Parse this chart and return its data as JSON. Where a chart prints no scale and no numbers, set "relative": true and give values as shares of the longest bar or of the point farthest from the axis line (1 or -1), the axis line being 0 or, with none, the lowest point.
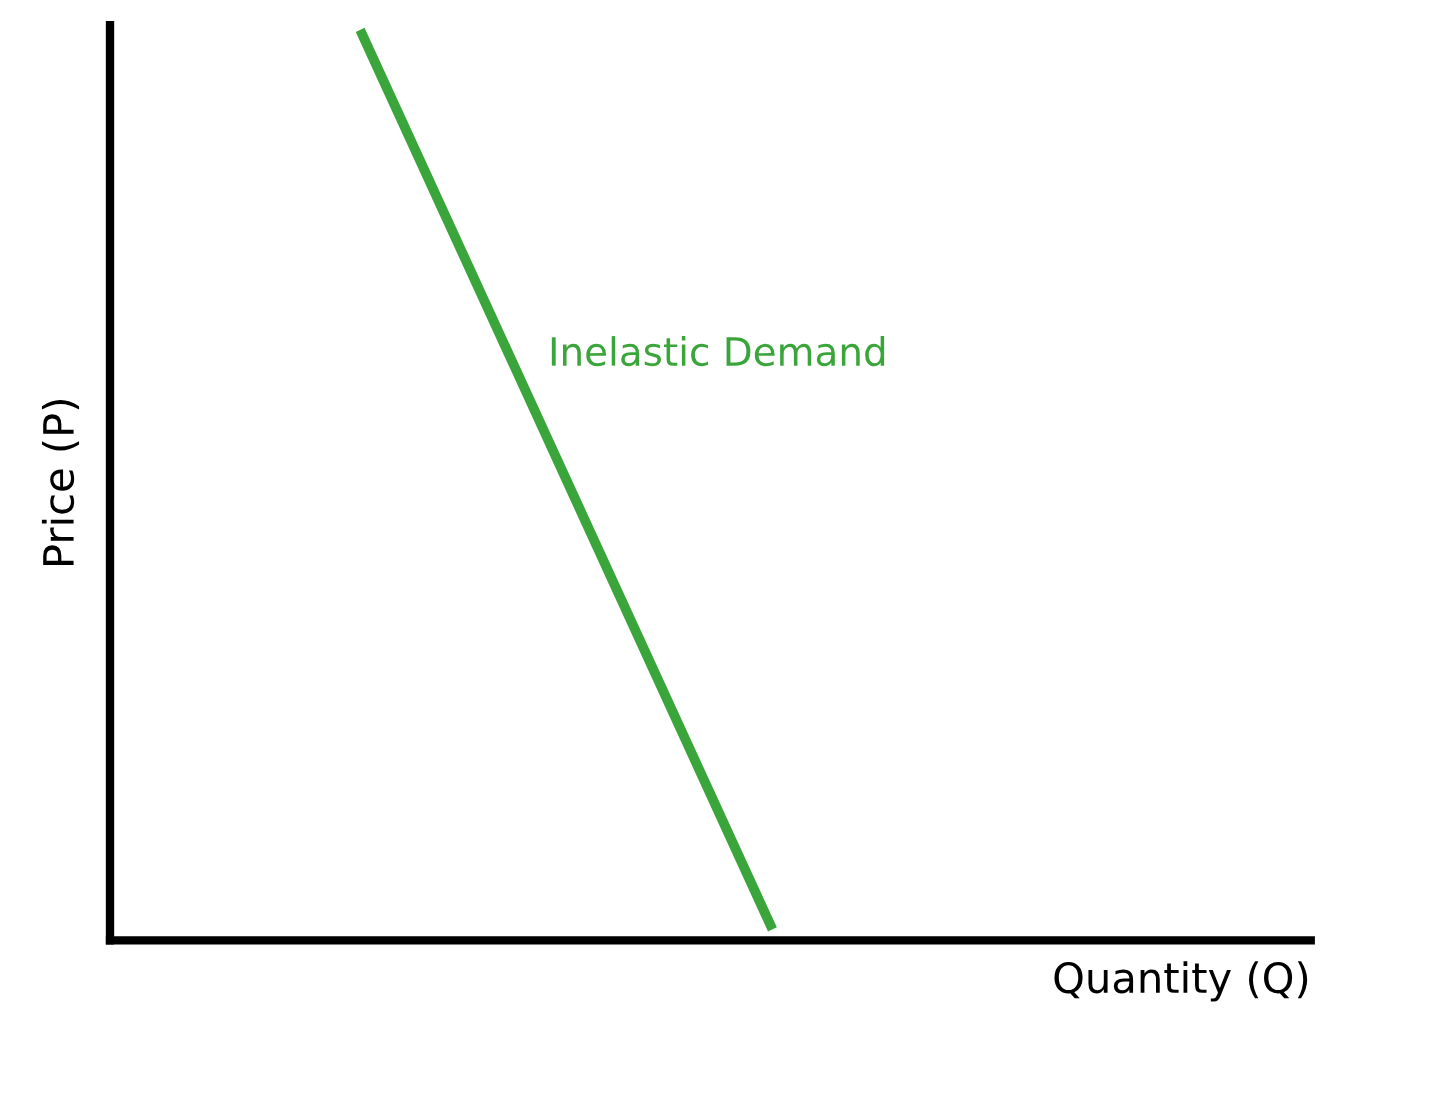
{
  "chart_data": {
    "type": "line",
    "relative": true,
    "xlabel": "Quantity (Q)",
    "ylabel": "Price (P)",
    "categories": [
      null,
      null
    ],
    "series": [
      {
        "name": "Inelastic Demand",
        "color": "#3aa53a",
        "values": [
          1,
          0.017
        ]
      }
    ],
    "legend": false,
    "marker": "none",
    "line_style": "solid"
  }
}
